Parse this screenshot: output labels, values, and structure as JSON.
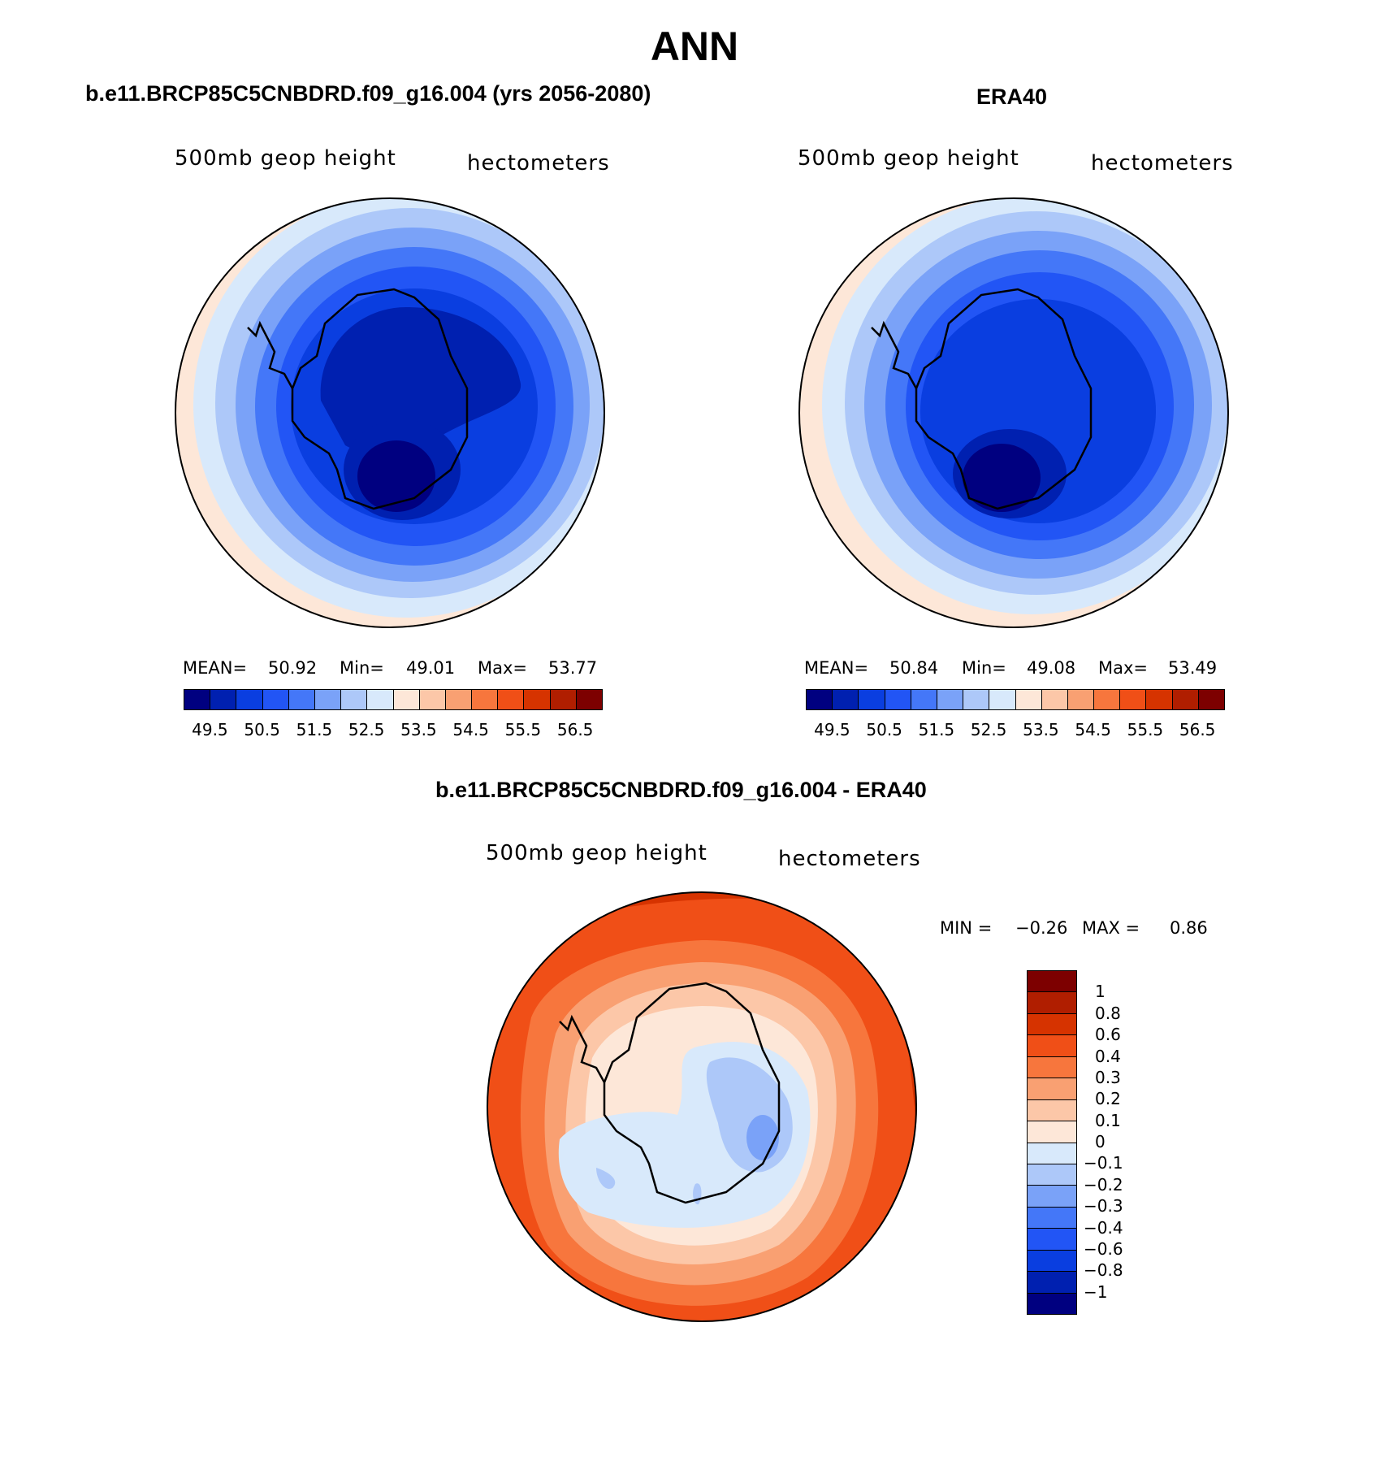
{
  "figure": {
    "title": "ANN",
    "colors": {
      "abs_scale": [
        "#000080",
        "#0020b0",
        "#0a3ee0",
        "#2255f5",
        "#4477f8",
        "#7aa2f8",
        "#adc8f9",
        "#d8e9fb",
        "#fde7d8",
        "#fcc7a8",
        "#f9a072",
        "#f7763d",
        "#f04f17",
        "#d63300",
        "#b01e00",
        "#7d0000"
      ],
      "diff_scale": [
        "#000080",
        "#0020b0",
        "#0a3ee0",
        "#2255f5",
        "#4477f8",
        "#7aa2f8",
        "#adc8f9",
        "#d8e9fb",
        "#fde7d8",
        "#fcc7a8",
        "#f9a072",
        "#f7763d",
        "#f04f17",
        "#d63300",
        "#b01e00",
        "#7d0000"
      ]
    }
  },
  "panels": {
    "model": {
      "title": "b.e11.BRCP85C5CNBDRD.f09_g16.004 (yrs 2056-2080)",
      "variable": "500mb  geop  height",
      "units": "hectometers",
      "mean_label": "MEAN=",
      "mean": "50.92",
      "min_label": "Min=",
      "min": "49.01",
      "max_label": "Max=",
      "max": "53.77"
    },
    "obs": {
      "title": "ERA40",
      "variable": "500mb  geop  height",
      "units": "hectometers",
      "mean_label": "MEAN=",
      "mean": "50.84",
      "min_label": "Min=",
      "min": "49.08",
      "max_label": "Max=",
      "max": "53.49"
    },
    "diff": {
      "title": "b.e11.BRCP85C5CNBDRD.f09_g16.004 - ERA40",
      "variable": "500mb  geop  height",
      "units": "hectometers",
      "min_label": "MIN =",
      "min": "−0.26",
      "max_label": "MAX =",
      "max": "0.86"
    }
  },
  "colorbars": {
    "absolute_ticks": [
      "49.5",
      "50.5",
      "51.5",
      "52.5",
      "53.5",
      "54.5",
      "55.5",
      "56.5"
    ],
    "difference_ticks": [
      "1",
      "0.8",
      "0.6",
      "0.4",
      "0.3",
      "0.2",
      "0.1",
      "0",
      "−0.1",
      "−0.2",
      "−0.3",
      "−0.4",
      "−0.6",
      "−0.8",
      "−1"
    ]
  }
}
